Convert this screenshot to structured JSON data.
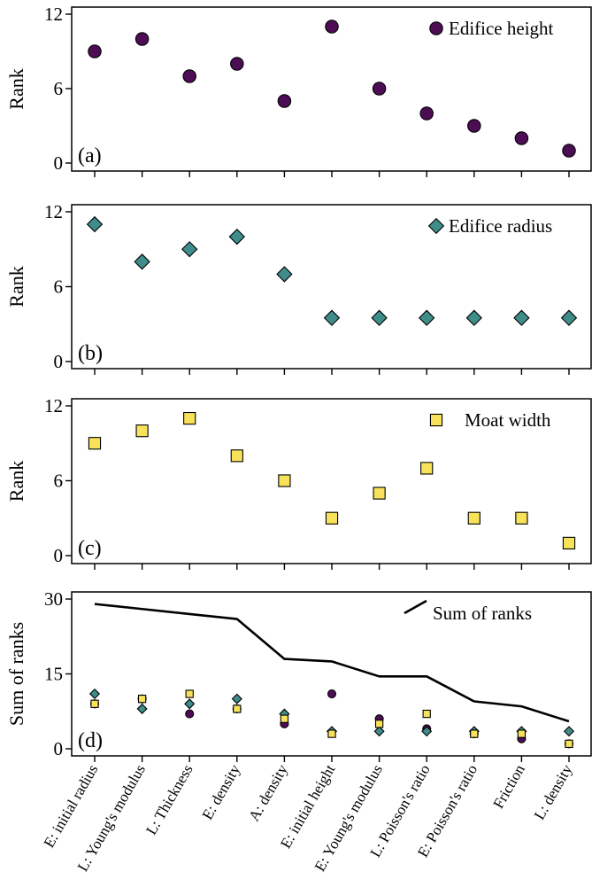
{
  "chart_data": {
    "type": "scatter",
    "categories": [
      "E: initial radius",
      "L: Young's modulus",
      "L: Thickness",
      "E: density",
      "A: density",
      "E: initial height",
      "E: Young's modulus",
      "L: Poisson's ratio",
      "E: Poisson's ratio",
      "Friction",
      "L: density"
    ],
    "colors": {
      "height": "#4d0d55",
      "radius": "#3f8d8a",
      "moat": "#f7e25a",
      "line": "#000000"
    },
    "panels": [
      {
        "id": "a",
        "label": "(a)",
        "ylabel": "Rank",
        "ylim": [
          0,
          12
        ],
        "yticks": [
          "0",
          "6",
          "12"
        ],
        "series": [
          {
            "name": "Edifice height",
            "marker": "circle",
            "color": "#4d0d55",
            "values": [
              9,
              10,
              7,
              8,
              5,
              11,
              6,
              4,
              3,
              2,
              1
            ]
          }
        ],
        "legend": "top-right"
      },
      {
        "id": "b",
        "label": "(b)",
        "ylabel": "Rank",
        "ylim": [
          0,
          12
        ],
        "yticks": [
          "0",
          "6",
          "12"
        ],
        "series": [
          {
            "name": "Edifice radius",
            "marker": "diamond",
            "color": "#3f8d8a",
            "values": [
              11,
              8,
              9,
              10,
              7,
              3.5,
              3.5,
              3.5,
              3.5,
              3.5,
              3.5
            ]
          }
        ],
        "legend": "top-right"
      },
      {
        "id": "c",
        "label": "(c)",
        "ylabel": "Rank",
        "ylim": [
          0,
          12
        ],
        "yticks": [
          "0",
          "6",
          "12"
        ],
        "series": [
          {
            "name": "Moat width",
            "marker": "square",
            "color": "#f7e25a",
            "values": [
              9,
              10,
              11,
              8,
              6,
              3,
              5,
              7,
              3,
              3,
              1
            ]
          }
        ],
        "legend": "top-right"
      },
      {
        "id": "d",
        "label": "(d)",
        "ylabel": "Sum of ranks",
        "ylim": [
          0,
          30
        ],
        "yticks": [
          "0",
          "15",
          "30"
        ],
        "series": [
          {
            "name": "Sum of ranks",
            "marker": "line",
            "color": "#000000",
            "values": [
              29,
              28,
              27,
              26,
              18,
              17.5,
              14.5,
              14.5,
              9.5,
              8.5,
              5.5
            ]
          },
          {
            "marker": "circle",
            "color": "#4d0d55",
            "values": [
              9,
              10,
              7,
              8,
              5,
              11,
              6,
              4,
              3,
              2,
              1
            ]
          },
          {
            "marker": "diamond",
            "color": "#3f8d8a",
            "values": [
              11,
              8,
              9,
              10,
              7,
              3.5,
              3.5,
              3.5,
              3.5,
              3.5,
              3.5
            ]
          },
          {
            "marker": "square",
            "color": "#f7e25a",
            "values": [
              9,
              10,
              11,
              8,
              6,
              3,
              5,
              7,
              3,
              3,
              1
            ]
          }
        ],
        "legend": "top-right"
      }
    ]
  }
}
